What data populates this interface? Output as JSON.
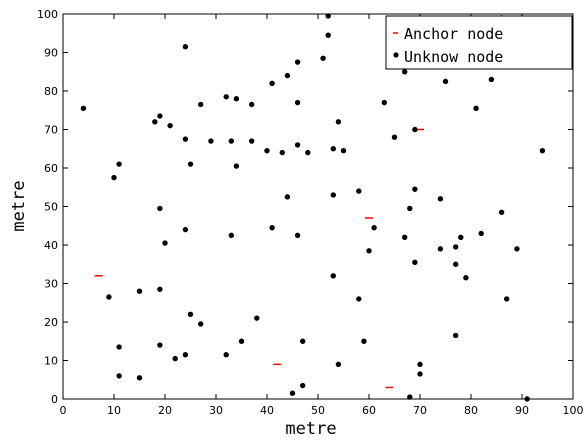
{
  "chart_data": {
    "type": "scatter",
    "title": "",
    "xlabel": "metre",
    "ylabel": "metre",
    "xlim": [
      0,
      100
    ],
    "ylim": [
      0,
      100
    ],
    "xticks": [
      0,
      10,
      20,
      30,
      40,
      50,
      60,
      70,
      80,
      90,
      100
    ],
    "yticks": [
      0,
      10,
      20,
      30,
      40,
      50,
      60,
      70,
      80,
      90,
      100
    ],
    "grid": false,
    "legend_position": "top-right",
    "series": [
      {
        "name": "Anchor node",
        "marker": "dash",
        "color": "#ff0000",
        "points": [
          [
            7,
            32
          ],
          [
            42,
            9
          ],
          [
            60,
            47
          ],
          [
            64,
            3
          ],
          [
            70,
            70
          ]
        ]
      },
      {
        "name": "Unknow node",
        "marker": "dot",
        "color": "#000000",
        "points": [
          [
            4,
            75.5
          ],
          [
            10,
            57.5
          ],
          [
            11,
            61
          ],
          [
            9,
            26.5
          ],
          [
            11,
            13.5
          ],
          [
            11,
            6
          ],
          [
            15,
            5.5
          ],
          [
            15,
            28
          ],
          [
            18,
            72
          ],
          [
            19,
            73.5
          ],
          [
            21,
            71
          ],
          [
            19,
            49.5
          ],
          [
            19,
            28.5
          ],
          [
            19,
            14
          ],
          [
            20,
            40.5
          ],
          [
            22,
            10.5
          ],
          [
            24,
            91.5
          ],
          [
            24,
            67.5
          ],
          [
            25,
            61
          ],
          [
            24,
            44
          ],
          [
            24,
            11.5
          ],
          [
            25,
            22
          ],
          [
            27,
            76.5
          ],
          [
            27,
            19.5
          ],
          [
            29,
            67
          ],
          [
            32,
            78.5
          ],
          [
            33,
            67
          ],
          [
            33,
            42.5
          ],
          [
            34,
            60.5
          ],
          [
            34,
            78
          ],
          [
            35,
            15
          ],
          [
            37,
            76.5
          ],
          [
            37,
            67
          ],
          [
            32,
            11.5
          ],
          [
            38,
            21
          ],
          [
            40,
            64.5
          ],
          [
            41,
            82
          ],
          [
            41,
            44.5
          ],
          [
            43,
            64
          ],
          [
            44,
            84
          ],
          [
            44,
            52.5
          ],
          [
            45,
            1.5
          ],
          [
            46,
            87.5
          ],
          [
            46,
            77
          ],
          [
            46,
            66
          ],
          [
            46,
            42.5
          ],
          [
            47,
            15
          ],
          [
            47,
            3.5
          ],
          [
            48,
            64
          ],
          [
            51,
            88.5
          ],
          [
            52,
            94.5
          ],
          [
            52,
            99.5
          ],
          [
            53,
            65
          ],
          [
            53,
            53
          ],
          [
            53,
            32
          ],
          [
            54,
            9
          ],
          [
            54,
            72
          ],
          [
            55,
            64.5
          ],
          [
            58,
            54
          ],
          [
            58,
            26
          ],
          [
            59,
            15
          ],
          [
            60,
            38.5
          ],
          [
            61,
            44.5
          ],
          [
            63,
            77
          ],
          [
            64,
            94
          ],
          [
            65,
            68
          ],
          [
            67,
            42
          ],
          [
            67,
            85
          ],
          [
            68,
            0.5
          ],
          [
            68,
            49.5
          ],
          [
            69,
            54.5
          ],
          [
            69,
            70
          ],
          [
            69,
            35.5
          ],
          [
            70,
            9
          ],
          [
            70,
            6.5
          ],
          [
            74,
            52
          ],
          [
            74,
            39
          ],
          [
            75,
            82.5
          ],
          [
            77,
            16.5
          ],
          [
            77,
            39.5
          ],
          [
            77,
            35
          ],
          [
            78,
            42
          ],
          [
            79,
            31.5
          ],
          [
            81,
            75.5
          ],
          [
            82,
            43
          ],
          [
            84,
            83
          ],
          [
            86,
            48.5
          ],
          [
            86,
            99
          ],
          [
            87,
            26
          ],
          [
            89,
            39
          ],
          [
            91,
            0
          ],
          [
            94,
            64.5
          ]
        ]
      }
    ]
  }
}
